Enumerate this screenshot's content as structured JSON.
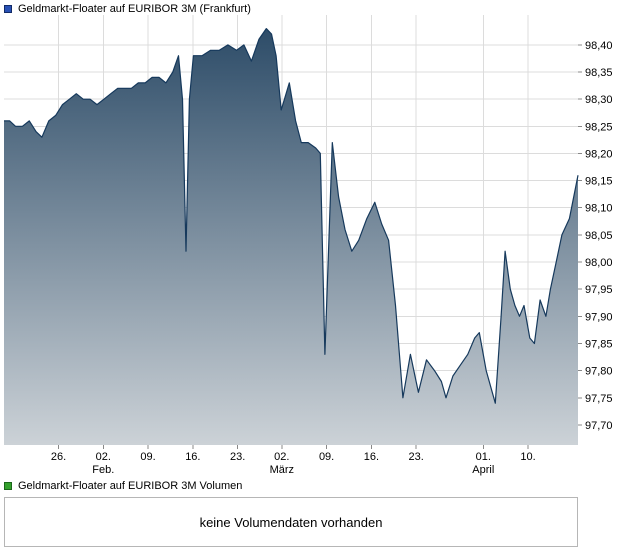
{
  "header": {
    "title": "Geldmarkt-Floater auf EURIBOR 3M (Frankfurt)",
    "legend_color": "#2850b4",
    "legend_border": "#122a66"
  },
  "volume": {
    "title": "Geldmarkt-Floater auf EURIBOR 3M Volumen",
    "legend_color": "#33a02c",
    "legend_border": "#1a661a",
    "message": "keine Volumendaten vorhanden"
  },
  "chart_data": {
    "type": "area",
    "title": "Geldmarkt-Floater auf EURIBOR 3M (Frankfurt)",
    "xlabel": "",
    "ylabel": "",
    "ylim": [
      97.663,
      98.455
    ],
    "grid": true,
    "legend_position": "top-left",
    "y_ticks": [
      {
        "value": 98.4,
        "label": "98,40"
      },
      {
        "value": 98.35,
        "label": "98,35"
      },
      {
        "value": 98.3,
        "label": "98,30"
      },
      {
        "value": 98.25,
        "label": "98,25"
      },
      {
        "value": 98.2,
        "label": "98,20"
      },
      {
        "value": 98.15,
        "label": "98,15"
      },
      {
        "value": 98.1,
        "label": "98,10"
      },
      {
        "value": 98.05,
        "label": "98,05"
      },
      {
        "value": 98.0,
        "label": "98,00"
      },
      {
        "value": 97.95,
        "label": "97,95"
      },
      {
        "value": 97.9,
        "label": "97,90"
      },
      {
        "value": 97.85,
        "label": "97,85"
      },
      {
        "value": 97.8,
        "label": "97,80"
      },
      {
        "value": 97.75,
        "label": "97,75"
      },
      {
        "value": 97.7,
        "label": "97,70"
      }
    ],
    "x_ticks": [
      {
        "pos": 0.095,
        "label": "26.",
        "month": ""
      },
      {
        "pos": 0.173,
        "label": "02.",
        "month": "Feb."
      },
      {
        "pos": 0.251,
        "label": "09.",
        "month": ""
      },
      {
        "pos": 0.329,
        "label": "16.",
        "month": ""
      },
      {
        "pos": 0.407,
        "label": "23.",
        "month": ""
      },
      {
        "pos": 0.484,
        "label": "02.",
        "month": "März"
      },
      {
        "pos": 0.562,
        "label": "09.",
        "month": ""
      },
      {
        "pos": 0.64,
        "label": "16.",
        "month": ""
      },
      {
        "pos": 0.718,
        "label": "23.",
        "month": ""
      },
      {
        "pos": 0.835,
        "label": "01.",
        "month": "April"
      },
      {
        "pos": 0.913,
        "label": "10.",
        "month": ""
      }
    ],
    "series": [
      {
        "name": "Geldmarkt-Floater auf EURIBOR 3M",
        "points": [
          [
            0.0,
            98.26
          ],
          [
            0.01,
            98.26
          ],
          [
            0.02,
            98.25
          ],
          [
            0.032,
            98.25
          ],
          [
            0.044,
            98.26
          ],
          [
            0.056,
            98.24
          ],
          [
            0.066,
            98.23
          ],
          [
            0.078,
            98.26
          ],
          [
            0.09,
            98.27
          ],
          [
            0.102,
            98.29
          ],
          [
            0.114,
            98.3
          ],
          [
            0.126,
            98.31
          ],
          [
            0.138,
            98.3
          ],
          [
            0.15,
            98.3
          ],
          [
            0.162,
            98.29
          ],
          [
            0.174,
            98.3
          ],
          [
            0.186,
            98.31
          ],
          [
            0.198,
            98.32
          ],
          [
            0.21,
            98.32
          ],
          [
            0.222,
            98.32
          ],
          [
            0.234,
            98.33
          ],
          [
            0.246,
            98.33
          ],
          [
            0.258,
            98.34
          ],
          [
            0.27,
            98.34
          ],
          [
            0.282,
            98.33
          ],
          [
            0.294,
            98.35
          ],
          [
            0.304,
            98.38
          ],
          [
            0.311,
            98.3
          ],
          [
            0.317,
            98.02
          ],
          [
            0.323,
            98.3
          ],
          [
            0.33,
            98.38
          ],
          [
            0.345,
            98.38
          ],
          [
            0.36,
            98.39
          ],
          [
            0.375,
            98.39
          ],
          [
            0.39,
            98.4
          ],
          [
            0.405,
            98.39
          ],
          [
            0.418,
            98.4
          ],
          [
            0.431,
            98.37
          ],
          [
            0.444,
            98.41
          ],
          [
            0.457,
            98.43
          ],
          [
            0.466,
            98.42
          ],
          [
            0.474,
            98.38
          ],
          [
            0.483,
            98.28
          ],
          [
            0.497,
            98.33
          ],
          [
            0.508,
            98.26
          ],
          [
            0.518,
            98.22
          ],
          [
            0.53,
            98.22
          ],
          [
            0.543,
            98.21
          ],
          [
            0.551,
            98.2
          ],
          [
            0.559,
            97.83
          ],
          [
            0.572,
            98.22
          ],
          [
            0.583,
            98.12
          ],
          [
            0.594,
            98.06
          ],
          [
            0.606,
            98.02
          ],
          [
            0.618,
            98.04
          ],
          [
            0.632,
            98.08
          ],
          [
            0.646,
            98.11
          ],
          [
            0.658,
            98.07
          ],
          [
            0.67,
            98.04
          ],
          [
            0.682,
            97.92
          ],
          [
            0.695,
            97.75
          ],
          [
            0.708,
            97.83
          ],
          [
            0.722,
            97.76
          ],
          [
            0.736,
            97.82
          ],
          [
            0.75,
            97.8
          ],
          [
            0.762,
            97.78
          ],
          [
            0.77,
            97.75
          ],
          [
            0.782,
            97.79
          ],
          [
            0.795,
            97.81
          ],
          [
            0.808,
            97.83
          ],
          [
            0.82,
            97.86
          ],
          [
            0.828,
            97.87
          ],
          [
            0.84,
            97.8
          ],
          [
            0.856,
            97.74
          ],
          [
            0.866,
            97.9
          ],
          [
            0.873,
            98.02
          ],
          [
            0.882,
            97.95
          ],
          [
            0.89,
            97.92
          ],
          [
            0.898,
            97.9
          ],
          [
            0.906,
            97.92
          ],
          [
            0.916,
            97.86
          ],
          [
            0.924,
            97.85
          ],
          [
            0.934,
            97.93
          ],
          [
            0.944,
            97.9
          ],
          [
            0.952,
            97.95
          ],
          [
            0.962,
            98.0
          ],
          [
            0.972,
            98.05
          ],
          [
            0.985,
            98.08
          ],
          [
            1.0,
            98.16
          ]
        ]
      }
    ],
    "colors": {
      "stroke": "#16395c",
      "fill_top": "#2d4c68",
      "fill_bottom": "#ccd2d7",
      "grid": "#dcdcdc",
      "tick": "#888888",
      "axis_text": "#000000"
    }
  }
}
